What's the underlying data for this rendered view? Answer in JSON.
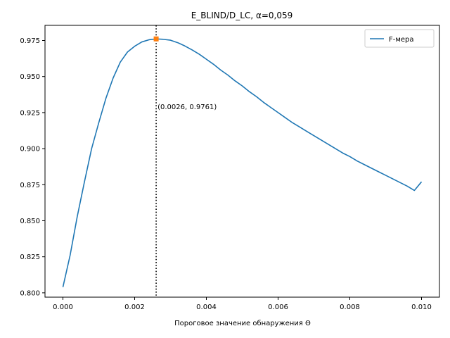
{
  "chart_data": {
    "type": "line",
    "title": "E_BLIND/D_LC, α=0,059",
    "xlabel": "Пороговое значение обнаружения Θ",
    "ylabel": "",
    "xlim": [
      -0.0005,
      0.0105
    ],
    "ylim": [
      0.797,
      0.9855
    ],
    "x_ticks": [
      0.0,
      0.002,
      0.004,
      0.006,
      0.008,
      0.01
    ],
    "x_tick_labels": [
      "0.000",
      "0.002",
      "0.004",
      "0.006",
      "0.008",
      "0.010"
    ],
    "y_ticks": [
      0.8,
      0.825,
      0.85,
      0.875,
      0.9,
      0.925,
      0.95,
      0.975
    ],
    "y_tick_labels": [
      "0.800",
      "0.825",
      "0.850",
      "0.875",
      "0.900",
      "0.925",
      "0.950",
      "0.975"
    ],
    "grid": false,
    "legend_position": "top-right",
    "series": [
      {
        "name": "F-мера",
        "color": "#1f77b4",
        "x": [
          0.0,
          0.0002,
          0.0004,
          0.0006,
          0.0008,
          0.001,
          0.0012,
          0.0014,
          0.0016,
          0.0018,
          0.002,
          0.0022,
          0.0024,
          0.0026,
          0.0028,
          0.003,
          0.0032,
          0.0034,
          0.0036,
          0.0038,
          0.004,
          0.0042,
          0.0044,
          0.0046,
          0.0048,
          0.005,
          0.0052,
          0.0054,
          0.0056,
          0.0058,
          0.006,
          0.0062,
          0.0064,
          0.0066,
          0.0068,
          0.007,
          0.0072,
          0.0074,
          0.0076,
          0.0078,
          0.008,
          0.0082,
          0.0084,
          0.0086,
          0.0088,
          0.009,
          0.0092,
          0.0094,
          0.0096,
          0.0098,
          0.01
        ],
        "y": [
          0.804,
          0.826,
          0.853,
          0.877,
          0.9,
          0.918,
          0.935,
          0.949,
          0.96,
          0.967,
          0.971,
          0.974,
          0.9755,
          0.9761,
          0.9758,
          0.9752,
          0.9735,
          0.9712,
          0.9685,
          0.9655,
          0.962,
          0.9585,
          0.9545,
          0.951,
          0.947,
          0.9435,
          0.9395,
          0.936,
          0.932,
          0.9285,
          0.925,
          0.9215,
          0.918,
          0.915,
          0.912,
          0.909,
          0.906,
          0.903,
          0.9,
          0.897,
          0.8945,
          0.8915,
          0.889,
          0.8865,
          0.884,
          0.8815,
          0.879,
          0.8765,
          0.874,
          0.871,
          0.877
        ]
      }
    ],
    "annotations": {
      "optimum": {
        "x": 0.0026,
        "y": 0.9761,
        "marker_color": "#ff7f0e",
        "label": "(0.0026, 0.9761)"
      }
    }
  }
}
